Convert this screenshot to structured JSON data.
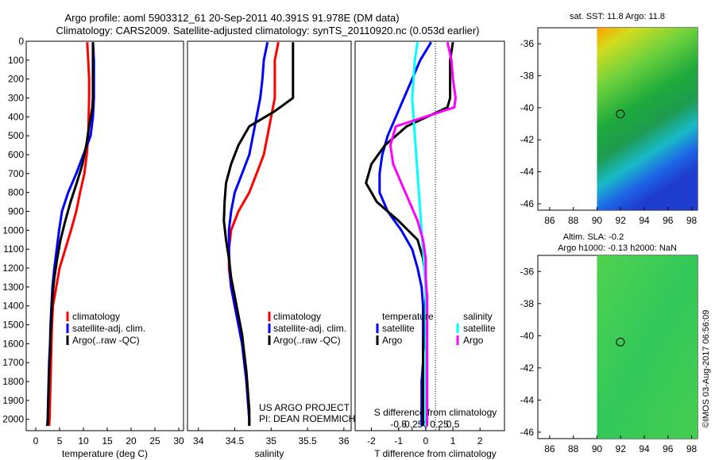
{
  "header": {
    "line1": "Argo profile: aoml 5903312_61 20-Sep-2011 40.391S 91.978E (DM data)",
    "line2": "Climatology: CARS2009. Satellite-adjusted climatology: synTS_20110920.nc (0.053d earlier)"
  },
  "colors": {
    "climatology": "#ff0000",
    "satellite": "#0000ff",
    "argo": "#000000",
    "cyan": "#00ffff",
    "magenta": "#ff00ff"
  },
  "chart_data": [
    {
      "id": "temperature",
      "type": "line",
      "xlabel": "temperature (deg C)",
      "xlim": [
        -2,
        31
      ],
      "xticks": [
        0,
        5,
        10,
        15,
        20,
        25,
        30
      ],
      "ylim": [
        0,
        2060
      ],
      "yticks": [
        0,
        100,
        200,
        300,
        400,
        500,
        600,
        700,
        800,
        900,
        1000,
        1100,
        1200,
        1300,
        1400,
        1500,
        1600,
        1700,
        1800,
        1900,
        2000
      ],
      "legend": {
        "position": "bottom-right",
        "entries": [
          "climatology",
          "satellite-adj. clim.",
          "Argo(..raw -QC)"
        ]
      },
      "series": [
        {
          "name": "climatology",
          "color": "#ff0000",
          "x": [
            10.8,
            11.0,
            11.2,
            11.2,
            11.1,
            11.0,
            10.7,
            10.2,
            9.3,
            8.5,
            7.4,
            6.2,
            5.0,
            4.3,
            3.6,
            3.4,
            3.3,
            3.2,
            3.1,
            3.0,
            2.9,
            2.8
          ],
          "y": [
            5,
            100,
            200,
            300,
            400,
            500,
            600,
            700,
            800,
            900,
            1000,
            1100,
            1200,
            1300,
            1400,
            1500,
            1600,
            1700,
            1800,
            1900,
            2000,
            2035
          ]
        },
        {
          "name": "satellite-adj. clim.",
          "color": "#0000ff",
          "x": [
            12.0,
            12.2,
            12.2,
            12.2,
            12.0,
            11.5,
            10.0,
            8.5,
            6.8,
            5.5,
            4.9,
            4.4,
            3.9,
            3.5,
            3.3,
            3.1,
            3.0,
            2.8,
            2.7,
            2.6,
            2.5,
            2.4
          ],
          "y": [
            5,
            100,
            200,
            300,
            400,
            500,
            600,
            700,
            800,
            900,
            1000,
            1100,
            1200,
            1300,
            1400,
            1500,
            1600,
            1700,
            1800,
            1900,
            2000,
            2035
          ]
        },
        {
          "name": "Argo(..raw -QC)",
          "color": "#000000",
          "x": [
            12.0,
            12.0,
            12.0,
            12.0,
            11.9,
            11.2,
            10.6,
            9.8,
            8.6,
            7.3,
            6.2,
            5.2,
            4.5,
            3.9,
            3.5,
            3.3,
            3.1,
            3.0,
            2.8,
            2.7,
            2.6,
            2.5
          ],
          "y": [
            5,
            100,
            200,
            300,
            350,
            450,
            550,
            650,
            750,
            850,
            950,
            1050,
            1150,
            1250,
            1350,
            1450,
            1550,
            1650,
            1750,
            1850,
            1950,
            2035
          ]
        }
      ]
    },
    {
      "id": "salinity",
      "type": "line",
      "xlabel": "salinity",
      "xlim": [
        33.85,
        36.1
      ],
      "xticks": [
        34,
        34.5,
        35,
        35.5,
        36
      ],
      "ylim": [
        0,
        2060
      ],
      "legend": {
        "position": "bottom-right",
        "entries": [
          "climatology",
          "satellite-adj. clim.",
          "Argo(..raw -QC)"
        ]
      },
      "annotation": [
        "US ARGO PROJECT",
        "PI: DEAN ROEMMICH"
      ],
      "series": [
        {
          "name": "climatology",
          "color": "#ff0000",
          "x": [
            35.1,
            35.05,
            35.05,
            35.05,
            35.0,
            34.95,
            34.9,
            34.8,
            34.7,
            34.55,
            34.45,
            34.42,
            34.42,
            34.45,
            34.5,
            34.55,
            34.6,
            34.64,
            34.66,
            34.68,
            34.7,
            34.7
          ],
          "y": [
            5,
            100,
            200,
            300,
            400,
            500,
            600,
            700,
            800,
            900,
            1000,
            1100,
            1200,
            1300,
            1400,
            1500,
            1600,
            1700,
            1800,
            1900,
            2000,
            2035
          ]
        },
        {
          "name": "satellite-adj. clim.",
          "color": "#0000ff",
          "x": [
            34.95,
            34.9,
            34.88,
            34.85,
            34.8,
            34.75,
            34.7,
            34.6,
            34.5,
            34.45,
            34.42,
            34.42,
            34.43,
            34.45,
            34.5,
            34.55,
            34.6,
            34.63,
            34.66,
            34.68,
            34.7,
            34.7
          ],
          "y": [
            5,
            100,
            200,
            300,
            400,
            500,
            600,
            700,
            800,
            900,
            1000,
            1100,
            1200,
            1300,
            1400,
            1500,
            1600,
            1700,
            1800,
            1900,
            2000,
            2035
          ]
        },
        {
          "name": "Argo(..raw -QC)",
          "color": "#000000",
          "x": [
            35.3,
            35.3,
            35.3,
            35.3,
            35.05,
            34.7,
            34.55,
            34.45,
            34.38,
            34.36,
            34.35,
            34.38,
            34.42,
            34.45,
            34.5,
            34.55,
            34.6,
            34.63,
            34.66,
            34.68,
            34.7,
            34.7
          ],
          "y": [
            5,
            100,
            200,
            300,
            370,
            450,
            550,
            650,
            750,
            850,
            950,
            1050,
            1150,
            1250,
            1350,
            1450,
            1550,
            1650,
            1750,
            1850,
            1950,
            2035
          ]
        }
      ]
    },
    {
      "id": "differences",
      "type": "line",
      "xlabel": "T difference from climatology",
      "xlabel_top": "S difference from climatology",
      "xlim": [
        -2.6,
        2.9
      ],
      "xticks": [
        -2,
        -1,
        0,
        1,
        2
      ],
      "xticks_top": [
        -0.5,
        -0.25,
        0,
        0.25,
        0.5
      ],
      "xtick_labels_top": [
        "-0.5",
        "-0.25",
        "0",
        "0.25",
        "0.5"
      ],
      "ylim": [
        0,
        2060
      ],
      "legend": {
        "position": "bottom",
        "groups": [
          {
            "title": "temperature",
            "entries": [
              "satellite",
              "Argo"
            ]
          },
          {
            "title": "salinity",
            "entries": [
              "satellite",
              "Argo"
            ]
          }
        ]
      },
      "series": [
        {
          "name": "temperature satellite",
          "color": "#0000ff",
          "x": [
            0.2,
            -0.2,
            -0.5,
            -0.8,
            -1.1,
            -1.4,
            -1.6,
            -1.7,
            -1.7,
            -1.4,
            -0.9,
            -0.5,
            -0.3,
            -0.15,
            -0.1,
            -0.1,
            -0.1,
            -0.1,
            -0.15,
            -0.15,
            -0.15
          ],
          "y": [
            5,
            100,
            200,
            300,
            400,
            500,
            600,
            700,
            800,
            900,
            1000,
            1100,
            1200,
            1300,
            1400,
            1500,
            1600,
            1700,
            1800,
            1900,
            2035
          ]
        },
        {
          "name": "temperature Argo",
          "color": "#000000",
          "x": [
            1.0,
            0.9,
            0.9,
            0.9,
            0.8,
            -0.7,
            -1.5,
            -2.0,
            -2.2,
            -1.8,
            -1.0,
            -0.3,
            -0.1,
            0.0,
            0.0,
            -0.05,
            -0.05,
            -0.1,
            -0.1,
            -0.1,
            -0.1
          ],
          "y": [
            5,
            100,
            200,
            300,
            350,
            450,
            550,
            650,
            750,
            850,
            950,
            1050,
            1150,
            1250,
            1350,
            1450,
            1550,
            1650,
            1750,
            1850,
            2035
          ]
        },
        {
          "name": "salinity satellite",
          "color": "#00ffff",
          "x": [
            -0.3,
            -0.4,
            -0.45,
            -0.5,
            -0.45,
            -0.4,
            -0.35,
            -0.3,
            -0.25,
            -0.2,
            -0.15,
            -0.1,
            -0.05,
            0.0,
            0.0,
            0.0,
            0.0,
            0.0,
            0.0,
            0.0,
            0.0
          ],
          "y": [
            5,
            100,
            200,
            300,
            400,
            500,
            600,
            700,
            800,
            900,
            1000,
            1100,
            1200,
            1300,
            1400,
            1500,
            1600,
            1700,
            1800,
            1900,
            2035
          ]
        },
        {
          "name": "salinity Argo",
          "color": "#ff00ff",
          "x": [
            0.8,
            0.95,
            1.0,
            1.1,
            1.05,
            -1.1,
            -1.3,
            -1.2,
            -0.9,
            -0.6,
            -0.3,
            -0.1,
            0.0,
            0.0,
            0.05,
            0.05,
            0.05,
            0.05,
            0.05,
            0.05,
            0.05
          ],
          "y": [
            5,
            100,
            200,
            300,
            350,
            450,
            550,
            650,
            750,
            850,
            950,
            1050,
            1150,
            1250,
            1350,
            1450,
            1550,
            1650,
            1750,
            1850,
            2035
          ]
        }
      ]
    },
    {
      "id": "sst-map",
      "type": "heatmap",
      "title": "sat. SST: 11.8 Argo: 11.8",
      "xlim": [
        85,
        98.5
      ],
      "ylim": [
        -46.4,
        -35
      ],
      "xticks": [
        86,
        88,
        90,
        92,
        94,
        96,
        98
      ],
      "yticks": [
        -36,
        -38,
        -40,
        -42,
        -44,
        -46
      ],
      "data_xlim": [
        90,
        98.5
      ],
      "marker": {
        "lon": 91.978,
        "lat": -40.391
      }
    },
    {
      "id": "sla-map",
      "type": "heatmap",
      "title": "Altim. SLA: -0.2",
      "subtitle": "Argo h1000: -0.13 h2000: NaN",
      "xlim": [
        85,
        98.5
      ],
      "ylim": [
        -46.4,
        -35
      ],
      "xticks": [
        86,
        88,
        90,
        92,
        94,
        96,
        98
      ],
      "yticks": [
        -36,
        -38,
        -40,
        -42,
        -44,
        -46
      ],
      "data_xlim": [
        90,
        98.5
      ],
      "marker": {
        "lon": 91.978,
        "lat": -40.391
      }
    }
  ],
  "footer": {
    "stamp": "©IMOS 03-Aug-2017 06:56:09"
  }
}
